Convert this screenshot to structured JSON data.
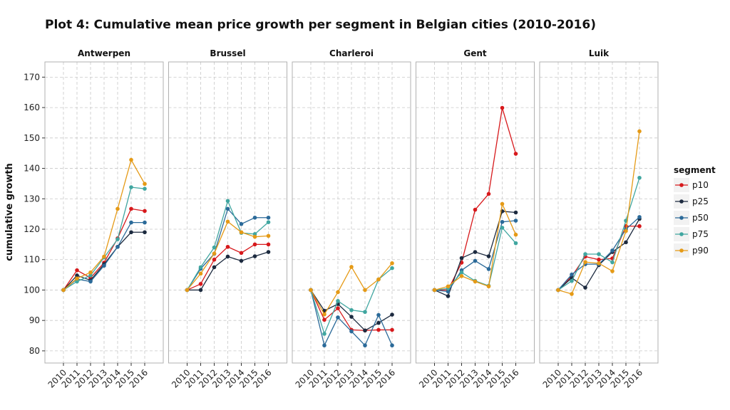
{
  "chart_data": {
    "type": "line",
    "title": "Plot 4: Cumulative mean price growth per segment in Belgian cities (2010-2016)",
    "ylabel": "cumulative growth",
    "xlabel": "",
    "x": [
      "2010",
      "2011",
      "2012",
      "2013",
      "2014",
      "2015",
      "2016"
    ],
    "ylim": [
      76,
      175
    ],
    "yticks": [
      80,
      90,
      100,
      110,
      120,
      130,
      140,
      150,
      160,
      170
    ],
    "grid": true,
    "legend": {
      "title": "segment",
      "placement": "right",
      "entries": [
        "p10",
        "p25",
        "p50",
        "p75",
        "p90"
      ]
    },
    "colors": {
      "p10": "#d7191c",
      "p25": "#1c2a3f",
      "p50": "#2b6a99",
      "p75": "#40a6a0",
      "p90": "#e59a16"
    },
    "panels": [
      {
        "name": "Antwerpen",
        "series": [
          {
            "name": "p10",
            "values": [
              100,
              106.5,
              104,
              109,
              117,
              126.7,
              126
            ]
          },
          {
            "name": "p25",
            "values": [
              100,
              104.8,
              103.2,
              108.5,
              114.2,
              119,
              119
            ]
          },
          {
            "name": "p50",
            "values": [
              100,
              103.6,
              102.8,
              108,
              114.2,
              122.2,
              122.2
            ]
          },
          {
            "name": "p75",
            "values": [
              100,
              102.8,
              104.8,
              110.7,
              116.7,
              133.8,
              133.3
            ]
          },
          {
            "name": "p90",
            "values": [
              100,
              103.8,
              105.8,
              111,
              126.7,
              142.8,
              134.9
            ]
          }
        ]
      },
      {
        "name": "Brussel",
        "series": [
          {
            "name": "p10",
            "values": [
              100,
              102,
              110,
              114.2,
              112.2,
              115,
              115
            ]
          },
          {
            "name": "p25",
            "values": [
              100,
              100,
              107.5,
              111,
              109.6,
              111.1,
              112.5
            ]
          },
          {
            "name": "p50",
            "values": [
              100,
              107,
              111.9,
              126.7,
              121.7,
              123.8,
              123.8
            ]
          },
          {
            "name": "p75",
            "values": [
              100,
              107.5,
              114,
              129.3,
              118.8,
              118.4,
              122.3
            ]
          },
          {
            "name": "p90",
            "values": [
              100,
              105.4,
              112,
              122.5,
              119,
              117.5,
              117.8
            ]
          }
        ]
      },
      {
        "name": "Charleroi",
        "series": [
          {
            "name": "p10",
            "values": [
              100,
              90.2,
              94,
              86.9,
              86.7,
              86.9,
              86.9
            ]
          },
          {
            "name": "p25",
            "values": [
              100,
              93.2,
              95.4,
              91.2,
              86.7,
              89.2,
              91.9
            ]
          },
          {
            "name": "p50",
            "values": [
              100,
              81.8,
              91,
              86.4,
              81.8,
              91.8,
              81.8
            ]
          },
          {
            "name": "p75",
            "values": [
              100,
              85.6,
              96.4,
              93.4,
              92.8,
              103.5,
              107.2
            ]
          },
          {
            "name": "p90",
            "values": [
              100,
              92,
              99.3,
              107.6,
              100,
              103.5,
              108.8
            ]
          }
        ]
      },
      {
        "name": "Gent",
        "series": [
          {
            "name": "p10",
            "values": [
              100,
              100,
              109,
              126.4,
              131.6,
              159.9,
              144.8
            ]
          },
          {
            "name": "p25",
            "values": [
              100,
              98,
              110.5,
              112.5,
              111.1,
              125.9,
              125.5
            ]
          },
          {
            "name": "p50",
            "values": [
              100,
              99.5,
              106.5,
              109.6,
              106.9,
              122.4,
              122.8
            ]
          },
          {
            "name": "p75",
            "values": [
              100,
              100.5,
              105.8,
              103,
              101.4,
              120.5,
              115.4
            ]
          },
          {
            "name": "p90",
            "values": [
              100,
              101.2,
              104.6,
              102.8,
              101.2,
              128.3,
              118.2
            ]
          }
        ]
      },
      {
        "name": "Luik",
        "series": [
          {
            "name": "p10",
            "values": [
              100,
              104.5,
              111,
              110,
              110.4,
              121,
              121
            ]
          },
          {
            "name": "p25",
            "values": [
              100,
              104,
              100.8,
              108.2,
              112.5,
              115.7,
              123.4
            ]
          },
          {
            "name": "p50",
            "values": [
              100,
              105.1,
              108.5,
              108.5,
              113,
              120,
              124
            ]
          },
          {
            "name": "p75",
            "values": [
              100,
              103,
              111.8,
              111.8,
              109.1,
              122.8,
              136.9
            ]
          },
          {
            "name": "p90",
            "values": [
              100,
              98.7,
              109.2,
              108.8,
              106.2,
              119.4,
              152.2
            ]
          }
        ]
      }
    ]
  }
}
